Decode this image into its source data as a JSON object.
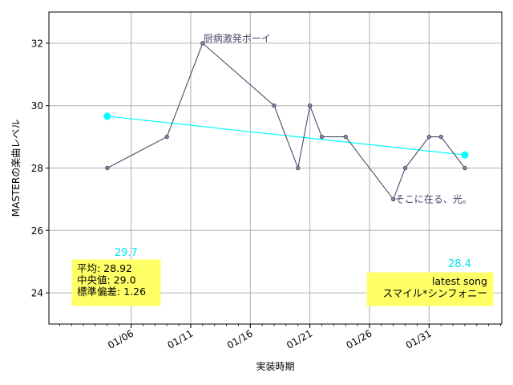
{
  "chart_data": {
    "type": "line",
    "title": "",
    "xlabel": "実装時期",
    "ylabel": "MASTERの楽曲レベル",
    "ylim": [
      23,
      33
    ],
    "yticks": [
      24,
      26,
      28,
      30,
      32
    ],
    "x_domain_days": [
      -1.9,
      36.1
    ],
    "x_reference": "01/01",
    "x_ticks": [
      "01/06",
      "01/11",
      "01/16",
      "01/21",
      "01/26",
      "01/31"
    ],
    "grid": true,
    "series": [
      {
        "x": [
          "01/04",
          "01/09",
          "01/12",
          "01/18",
          "01/20",
          "01/21",
          "01/22",
          "01/24",
          "01/28",
          "01/29",
          "01/31",
          "02/01",
          "02/03"
        ],
        "y": [
          28,
          29,
          32,
          30,
          28,
          30,
          29,
          29,
          27,
          28,
          29,
          29,
          28
        ],
        "color": "#4a4a6a"
      }
    ],
    "trend": {
      "x": [
        "01/04",
        "02/03"
      ],
      "y": [
        29.66,
        28.42
      ],
      "color": "#00ffff",
      "start_label": "29.7",
      "end_label": "28.4"
    },
    "annotations": [
      {
        "text": "厨病激発ボーイ",
        "x": "01/12",
        "y": 32
      },
      {
        "text": "そこに在る、光。",
        "x": "01/28",
        "y": 27
      }
    ],
    "stats_box": {
      "lines": [
        "平均: 28.92",
        "中央値: 29.0",
        "標準偏差:  1.26"
      ],
      "color": "#ffff66"
    },
    "latest_box": {
      "lines": [
        "latest song",
        "スマイル*シンフォニー"
      ],
      "color": "#ffff66"
    }
  }
}
